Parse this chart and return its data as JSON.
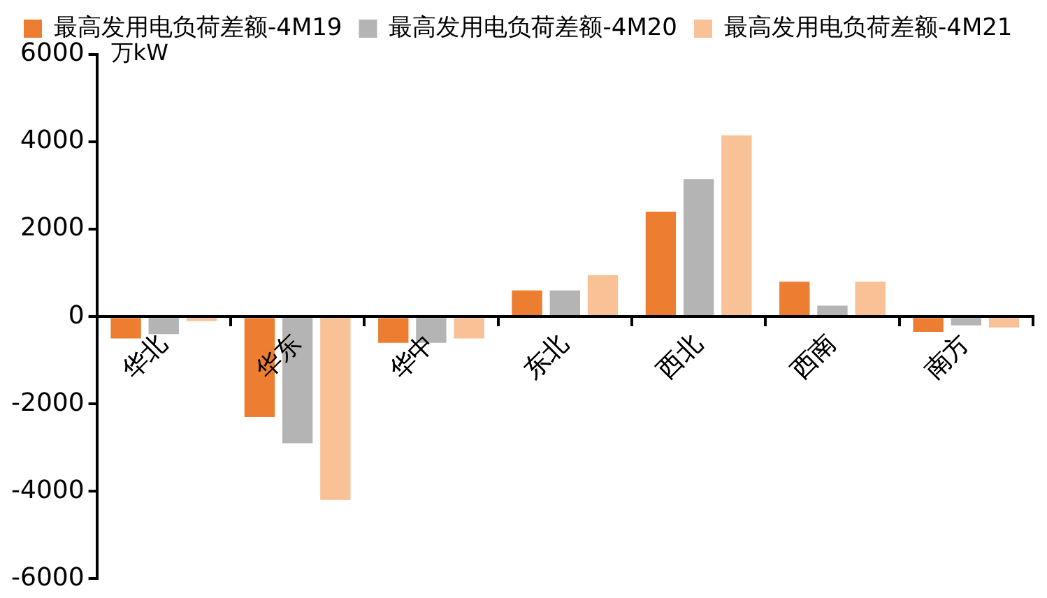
{
  "chart_data": {
    "type": "bar",
    "ylabel": "万kW",
    "categories": [
      "华北",
      "华东",
      "华中",
      "东北",
      "西北",
      "西南",
      "南方"
    ],
    "series": [
      {
        "name": "最高发用电负荷差额-4M19",
        "color": "#ed7d31",
        "values": [
          -500,
          -2300,
          -600,
          600,
          2400,
          800,
          -350
        ]
      },
      {
        "name": "最高发用电负荷差额-4M20",
        "color": "#b4b4b4",
        "values": [
          -400,
          -2900,
          -600,
          600,
          3150,
          250,
          -200
        ]
      },
      {
        "name": "最高发用电负荷差额-4M21",
        "color": "#f8c196",
        "values": [
          -100,
          -4200,
          -500,
          950,
          4150,
          800,
          -250
        ]
      }
    ],
    "ylim": [
      -6000,
      6000
    ],
    "yticks": [
      -6000,
      -4000,
      -2000,
      0,
      2000,
      4000,
      6000
    ],
    "grid": false,
    "legend": "top"
  }
}
